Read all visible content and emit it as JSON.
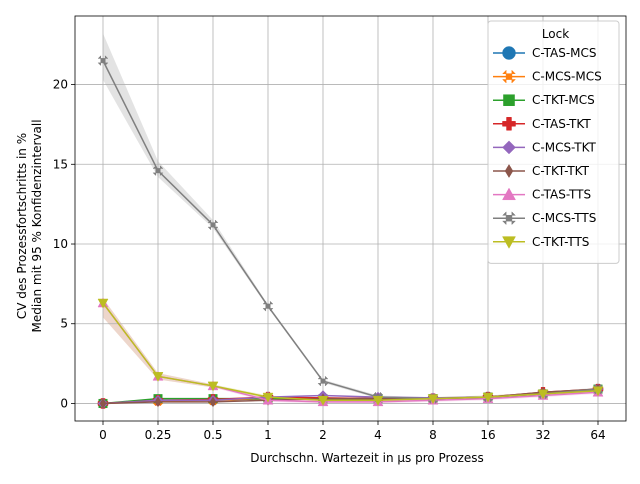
{
  "chart_data": {
    "type": "line",
    "xlabel": "Durchschn. Wartezeit in µs pro Prozess",
    "ylabel_lines": [
      "CV des Prozessfortschritts in %",
      "Median mit 95 % Konfidenzintervall"
    ],
    "categories": [
      "0",
      "0.25",
      "0.5",
      "1",
      "2",
      "4",
      "8",
      "16",
      "32",
      "64"
    ],
    "yticks": [
      "0",
      "5",
      "10",
      "15",
      "20"
    ],
    "ylim": [
      -1.1,
      24.3
    ],
    "grid": true,
    "legend": {
      "title": "Lock",
      "placement": "top-right"
    },
    "series": [
      {
        "name": "C-TAS-MCS",
        "color": "#1f77b4",
        "marker": "circle",
        "values": [
          0.0,
          0.2,
          0.2,
          0.3,
          0.3,
          0.3,
          0.3,
          0.4,
          0.6,
          0.9
        ]
      },
      {
        "name": "C-MCS-MCS",
        "color": "#ff7f0e",
        "marker": "x-filled",
        "values": [
          0.0,
          0.15,
          0.2,
          0.3,
          0.3,
          0.3,
          0.3,
          0.4,
          0.6,
          0.9
        ]
      },
      {
        "name": "C-TKT-MCS",
        "color": "#2ca02c",
        "marker": "square",
        "values": [
          0.0,
          0.3,
          0.3,
          0.3,
          0.3,
          0.3,
          0.3,
          0.4,
          0.6,
          0.9
        ]
      },
      {
        "name": "C-TAS-TKT",
        "color": "#d62728",
        "marker": "plus-filled",
        "values": [
          0.0,
          0.2,
          0.25,
          0.4,
          0.35,
          0.3,
          0.3,
          0.4,
          0.7,
          0.9
        ]
      },
      {
        "name": "C-MCS-TKT",
        "color": "#9467bd",
        "marker": "diamond",
        "values": [
          0.0,
          0.2,
          0.2,
          0.4,
          0.5,
          0.4,
          0.35,
          0.4,
          0.6,
          0.9
        ]
      },
      {
        "name": "C-TKT-TKT",
        "color": "#8c564b",
        "marker": "thin-diamond",
        "values": [
          0.0,
          0.1,
          0.1,
          0.2,
          0.3,
          0.3,
          0.3,
          0.4,
          0.7,
          0.9
        ]
      },
      {
        "name": "C-TAS-TTS",
        "color": "#e377c2",
        "marker": "triangle-up",
        "values": [
          6.3,
          1.7,
          1.1,
          0.2,
          0.1,
          0.1,
          0.2,
          0.3,
          0.5,
          0.7
        ]
      },
      {
        "name": "C-MCS-TTS",
        "color": "#7f7f7f",
        "marker": "x-filled",
        "values": [
          21.5,
          14.6,
          11.2,
          6.1,
          1.4,
          0.4,
          0.3,
          0.4,
          0.6,
          0.9
        ]
      },
      {
        "name": "C-TKT-TTS",
        "color": "#bcbd22",
        "marker": "triangle-down",
        "values": [
          6.3,
          1.7,
          1.1,
          0.4,
          0.2,
          0.2,
          0.3,
          0.4,
          0.6,
          0.8
        ]
      }
    ],
    "confidence_bands": [
      {
        "series": "C-MCS-TTS",
        "color": "#7f7f7f",
        "lower": [
          20.3,
          14.2,
          11.0,
          6.0,
          1.3,
          0.3,
          0.2,
          0.3,
          0.5,
          0.8
        ],
        "upper": [
          23.2,
          15.2,
          11.5,
          6.2,
          1.5,
          0.5,
          0.4,
          0.5,
          0.7,
          1.0
        ]
      },
      {
        "series": "C-TKT-TTS",
        "color": "#bcbd22",
        "lower": [
          5.4,
          1.5,
          1.0,
          0.3,
          0.1,
          0.1,
          0.2,
          0.3,
          0.5,
          0.7
        ],
        "upper": [
          6.6,
          1.9,
          1.2,
          0.5,
          0.3,
          0.3,
          0.4,
          0.5,
          0.7,
          0.9
        ]
      },
      {
        "series": "C-TAS-TTS",
        "color": "#e377c2",
        "lower": [
          5.4,
          1.5,
          1.0,
          0.1,
          0.0,
          0.0,
          0.1,
          0.2,
          0.4,
          0.6
        ],
        "upper": [
          6.6,
          1.9,
          1.2,
          0.3,
          0.2,
          0.2,
          0.3,
          0.4,
          0.6,
          0.8
        ]
      }
    ]
  }
}
